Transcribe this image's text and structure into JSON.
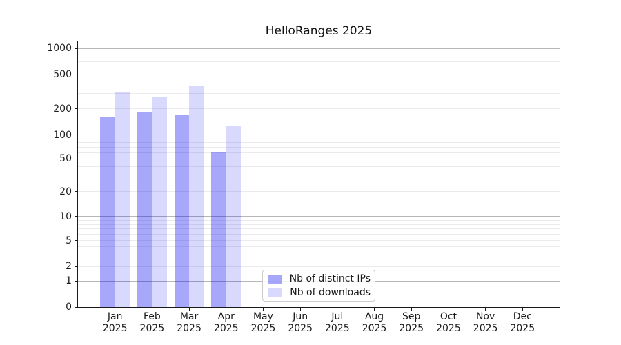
{
  "chart_data": {
    "type": "bar",
    "title": "HelloRanges 2025",
    "categories": [
      {
        "month": "Jan",
        "year": "2025"
      },
      {
        "month": "Feb",
        "year": "2025"
      },
      {
        "month": "Mar",
        "year": "2025"
      },
      {
        "month": "Apr",
        "year": "2025"
      },
      {
        "month": "May",
        "year": "2025"
      },
      {
        "month": "Jun",
        "year": "2025"
      },
      {
        "month": "Jul",
        "year": "2025"
      },
      {
        "month": "Aug",
        "year": "2025"
      },
      {
        "month": "Sep",
        "year": "2025"
      },
      {
        "month": "Oct",
        "year": "2025"
      },
      {
        "month": "Nov",
        "year": "2025"
      },
      {
        "month": "Dec",
        "year": "2025"
      }
    ],
    "series": [
      {
        "name": "Nb of distinct IPs",
        "color": "rgba(0,0,240,0.34)",
        "values": [
          160,
          185,
          172,
          60,
          null,
          null,
          null,
          null,
          null,
          null,
          null,
          null
        ]
      },
      {
        "name": "Nb of downloads",
        "color": "rgba(0,0,240,0.15)",
        "values": [
          310,
          275,
          365,
          130,
          null,
          null,
          null,
          null,
          null,
          null,
          null,
          null
        ]
      }
    ],
    "y_axis": {
      "scale": "symlog",
      "tick_labels": [
        "0",
        "1",
        "2",
        "5",
        "10",
        "20",
        "50",
        "100",
        "200",
        "500",
        "1000"
      ],
      "ticks": [
        0,
        1,
        2,
        5,
        10,
        20,
        50,
        100,
        200,
        500,
        1000
      ],
      "ylim": [
        0,
        1200
      ]
    },
    "grid": true,
    "legend_position": "lower center"
  },
  "colors": {
    "major_grid": "#b6b6b6",
    "minor_grid": "#ebebeb",
    "spine": "#1a1a1a",
    "background": "#ffffff"
  }
}
